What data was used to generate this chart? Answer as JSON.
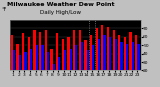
{
  "title": "Milwaukee Weather Dew Point",
  "subtitle": "Daily High/Low",
  "background_color": "#c0c0c0",
  "plot_bg": "#000000",
  "bar_width": 0.4,
  "days": [
    1,
    2,
    3,
    4,
    5,
    6,
    7,
    8,
    9,
    10,
    11,
    12,
    13,
    14,
    15,
    16,
    17,
    18,
    19,
    20,
    21,
    22,
    23
  ],
  "highs": [
    62,
    52,
    64,
    60,
    68,
    66,
    68,
    46,
    64,
    58,
    60,
    68,
    68,
    56,
    62,
    70,
    74,
    72,
    68,
    62,
    60,
    66,
    62
  ],
  "lows": [
    44,
    38,
    42,
    46,
    50,
    50,
    42,
    28,
    36,
    44,
    46,
    50,
    54,
    44,
    50,
    58,
    62,
    60,
    58,
    54,
    52,
    54,
    52
  ],
  "high_color": "#ff0000",
  "low_color": "#0000ff",
  "dotted_lines_after": [
    14,
    15
  ],
  "ylim_min": 20,
  "ylim_max": 80,
  "yticks": [
    20,
    30,
    40,
    50,
    60,
    70
  ],
  "ytick_labels": [
    "20",
    "30",
    "40",
    "50",
    "60",
    "70"
  ],
  "xtick_labels": [
    "1",
    "2",
    "3",
    "4",
    "5",
    "6",
    "7",
    "8",
    "9",
    "10",
    "11",
    "12",
    "13",
    "14",
    "15",
    "16",
    "17",
    "18",
    "19",
    "20",
    "21",
    "22",
    "23"
  ],
  "legend_high": "High",
  "legend_low": "Low",
  "title_fontsize": 4.5,
  "tick_fontsize": 3.2,
  "legend_fontsize": 3.0
}
